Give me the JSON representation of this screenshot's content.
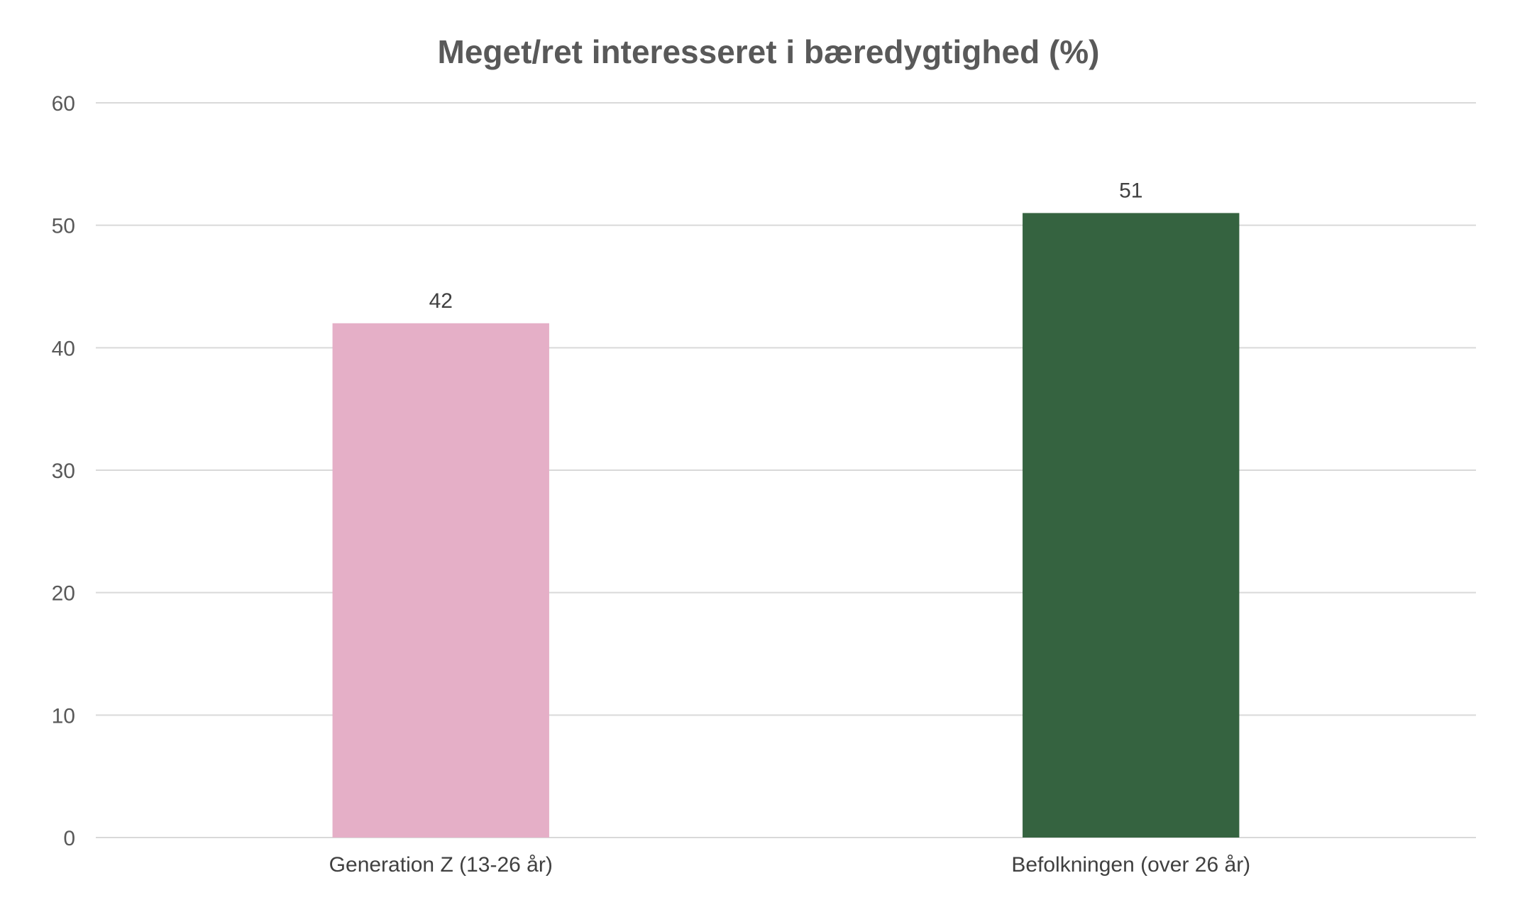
{
  "chart_data": {
    "type": "bar",
    "title": "Meget/ret interesseret i bæredygtighed (%)",
    "xlabel": "",
    "ylabel": "",
    "categories": [
      "Generation Z (13-26 år)",
      "Befolkningen (over 26 år)"
    ],
    "values": [
      42,
      51
    ],
    "data_labels": [
      "42",
      "51"
    ],
    "bar_colors": [
      "#e5afc7",
      "#356340"
    ],
    "ylim": [
      0,
      60
    ],
    "yticks": [
      0,
      10,
      20,
      30,
      40,
      50,
      60
    ],
    "ytick_labels": [
      "0",
      "10",
      "20",
      "30",
      "40",
      "50",
      "60"
    ],
    "grid": true,
    "legend": "none"
  }
}
